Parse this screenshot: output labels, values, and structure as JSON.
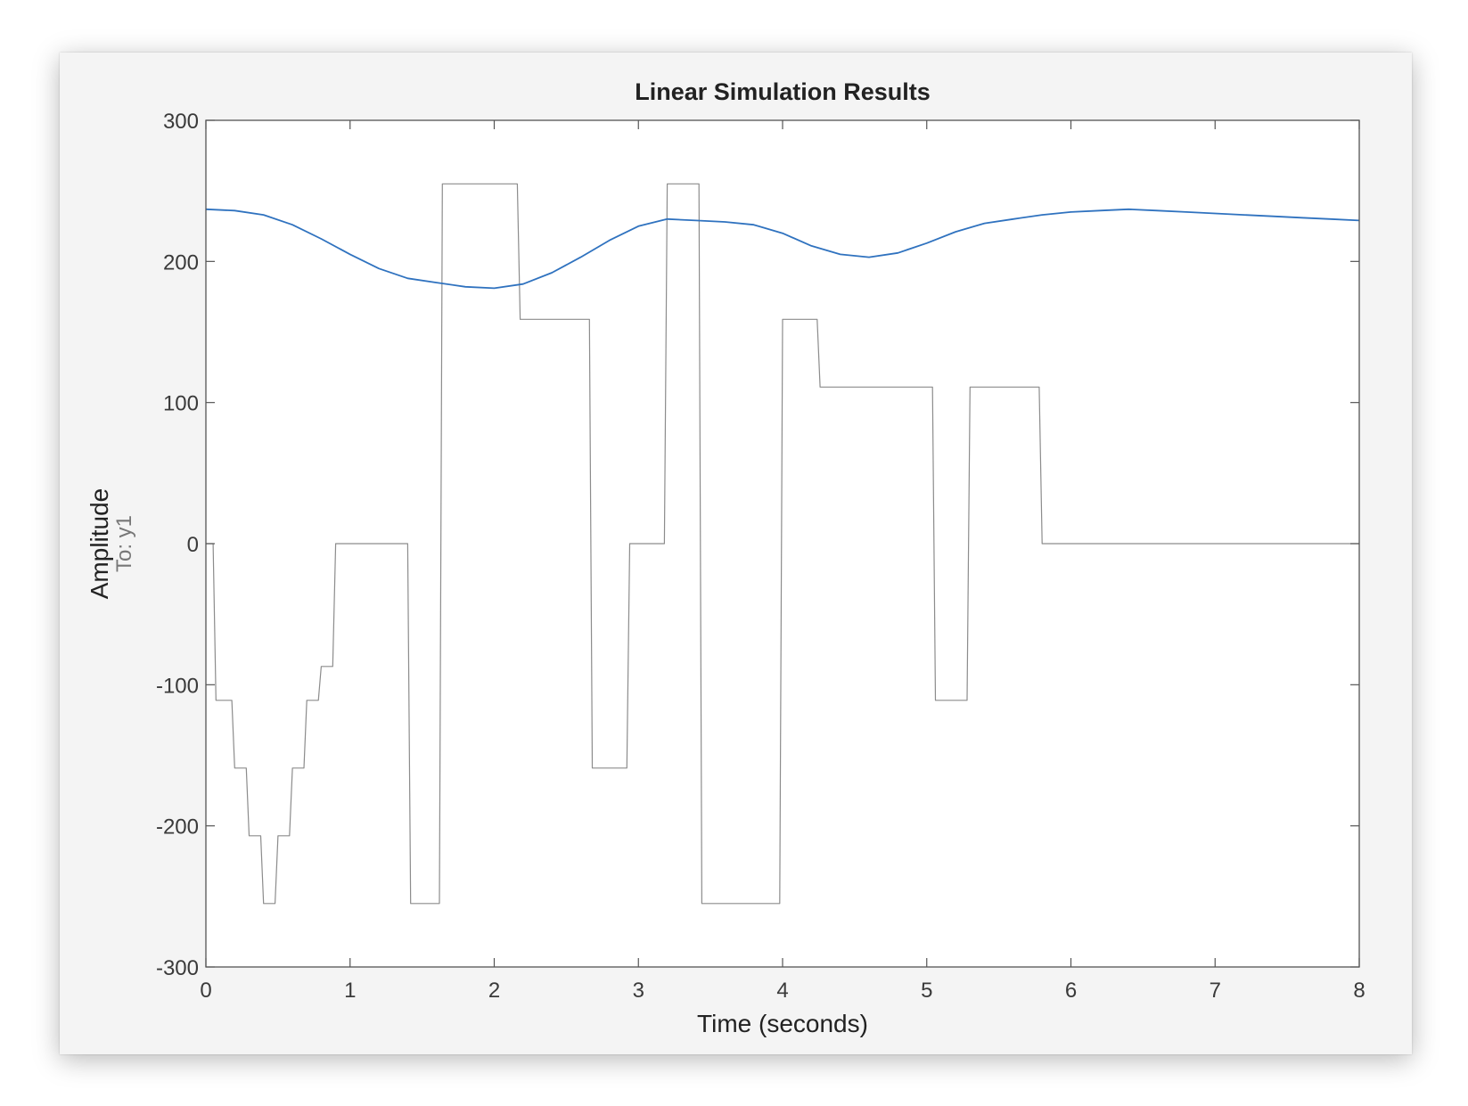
{
  "chart_data": {
    "type": "line",
    "title": "Linear Simulation Results",
    "xlabel": "Time (seconds)",
    "ylabel": "Amplitude",
    "output_label": "To: y1",
    "xlim": [
      0,
      8
    ],
    "ylim": [
      -300,
      300
    ],
    "x_ticks": [
      "0",
      "1",
      "2",
      "3",
      "4",
      "5",
      "6",
      "7",
      "8"
    ],
    "y_ticks": [
      "-300",
      "-200",
      "-100",
      "0",
      "100",
      "200",
      "300"
    ],
    "grid": false,
    "legend": "none",
    "series": [
      {
        "role": "input",
        "color": "#8c8c8c",
        "x": [
          0,
          0.05,
          0.07,
          0.18,
          0.2,
          0.28,
          0.3,
          0.38,
          0.4,
          0.48,
          0.5,
          0.58,
          0.6,
          0.68,
          0.7,
          0.78,
          0.8,
          0.88,
          0.9,
          0.98,
          1.0,
          1.4,
          1.42,
          1.62,
          1.64,
          1.9,
          1.92,
          2.16,
          2.18,
          2.66,
          2.68,
          2.92,
          2.94,
          3.18,
          3.2,
          3.42,
          3.44,
          3.98,
          4.0,
          4.24,
          4.26,
          5.04,
          5.06,
          5.28,
          5.3,
          5.78,
          5.8,
          8.0
        ],
        "y": [
          0,
          0,
          -111,
          -111,
          -159,
          -159,
          -207,
          -207,
          -255,
          -255,
          -207,
          -207,
          -159,
          -159,
          -111,
          -111,
          -87,
          -87,
          0,
          0,
          0,
          0,
          -255,
          -255,
          255,
          255,
          255,
          255,
          159,
          159,
          -159,
          -159,
          0,
          0,
          255,
          255,
          -255,
          -255,
          159,
          159,
          111,
          111,
          -111,
          -111,
          111,
          111,
          0,
          0
        ]
      },
      {
        "role": "response",
        "color": "#2f72bf",
        "x": [
          0,
          0.2,
          0.4,
          0.6,
          0.8,
          1.0,
          1.2,
          1.4,
          1.6,
          1.8,
          2.0,
          2.2,
          2.4,
          2.6,
          2.8,
          3.0,
          3.2,
          3.4,
          3.6,
          3.8,
          4.0,
          4.2,
          4.4,
          4.6,
          4.8,
          5.0,
          5.2,
          5.4,
          5.6,
          5.8,
          6.0,
          6.2,
          6.4,
          6.6,
          6.8,
          7.0,
          7.2,
          7.4,
          7.6,
          7.8,
          8.0
        ],
        "y": [
          237,
          236,
          233,
          226,
          216,
          205,
          195,
          188,
          185,
          182,
          181,
          184,
          192,
          203,
          215,
          225,
          230,
          229,
          228,
          226,
          220,
          211,
          205,
          203,
          206,
          213,
          221,
          227,
          230,
          233,
          235,
          236,
          237,
          236,
          235,
          234,
          233,
          232,
          231,
          230,
          229
        ]
      }
    ]
  }
}
